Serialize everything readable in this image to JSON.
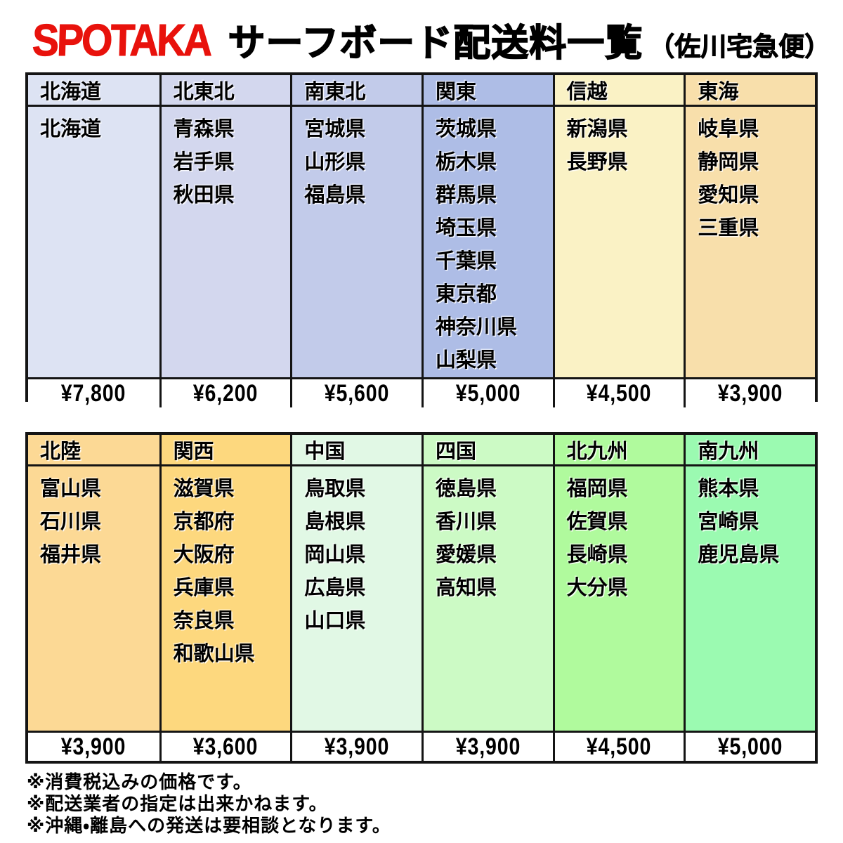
{
  "header": {
    "logo": "SPOTAKA",
    "logo_color": "#e8120c",
    "title": "サーフボード配送料一覧",
    "subtitle": "（佐川宅急便）"
  },
  "tables": [
    {
      "name": "top-regions",
      "columns": [
        {
          "region": "北海道",
          "prefectures": [
            "北海道"
          ],
          "price": "¥7,800",
          "bg": "#dde3f3"
        },
        {
          "region": "北東北",
          "prefectures": [
            "青森県",
            "岩手県",
            "秋田県"
          ],
          "price": "¥6,200",
          "bg": "#d3d7ee"
        },
        {
          "region": "南東北",
          "prefectures": [
            "宮城県",
            "山形県",
            "福島県"
          ],
          "price": "¥5,600",
          "bg": "#c2cbea"
        },
        {
          "region": "関東",
          "prefectures": [
            "茨城県",
            "栃木県",
            "群馬県",
            "埼玉県",
            "千葉県",
            "東京都",
            "神奈川県",
            "山梨県"
          ],
          "price": "¥5,000",
          "bg": "#aebde6"
        },
        {
          "region": "信越",
          "prefectures": [
            "新潟県",
            "長野県"
          ],
          "price": "¥4,500",
          "bg": "#faf2c5"
        },
        {
          "region": "東海",
          "prefectures": [
            "岐阜県",
            "静岡県",
            "愛知県",
            "三重県"
          ],
          "price": "¥3,900",
          "bg": "#f8dfab"
        }
      ]
    },
    {
      "name": "bottom-regions",
      "columns": [
        {
          "region": "北陸",
          "prefectures": [
            "富山県",
            "石川県",
            "福井県"
          ],
          "price": "¥3,900",
          "bg": "#fcd995"
        },
        {
          "region": "関西",
          "prefectures": [
            "滋賀県",
            "京都府",
            "大阪府",
            "兵庫県",
            "奈良県",
            "和歌山県"
          ],
          "price": "¥3,600",
          "bg": "#fdd87e"
        },
        {
          "region": "中国",
          "prefectures": [
            "鳥取県",
            "島根県",
            "岡山県",
            "広島県",
            "山口県"
          ],
          "price": "¥3,900",
          "bg": "#e1f8e5"
        },
        {
          "region": "四国",
          "prefectures": [
            "徳島県",
            "香川県",
            "愛媛県",
            "高知県"
          ],
          "price": "¥3,900",
          "bg": "#ccfac5"
        },
        {
          "region": "北九州",
          "prefectures": [
            "福岡県",
            "佐賀県",
            "長崎県",
            "大分県"
          ],
          "price": "¥4,500",
          "bg": "#b0fa9d"
        },
        {
          "region": "南九州",
          "prefectures": [
            "熊本県",
            "宮崎県",
            "鹿児島県"
          ],
          "price": "¥5,000",
          "bg": "#9bfab1"
        }
      ]
    }
  ],
  "notes": [
    "※消費税込みの価格です。",
    "※配送業者の指定は出来かねます。",
    "※沖縄・離島への発送は要相談となります。"
  ]
}
